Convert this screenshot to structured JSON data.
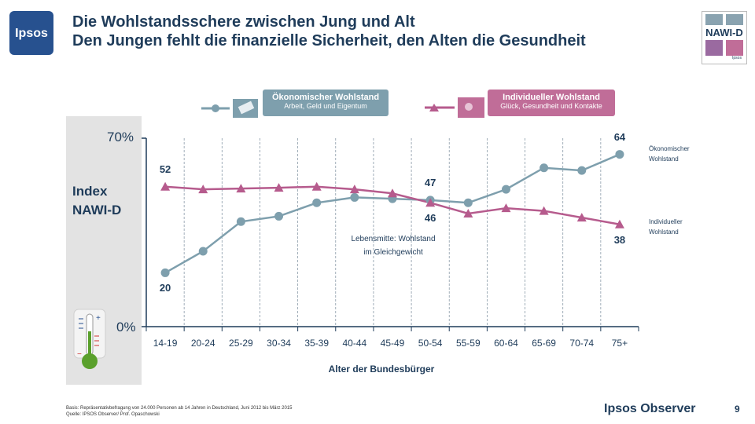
{
  "header": {
    "logo_text": "Ipsos",
    "title_line1": "Die Wohlstandsschere zwischen Jung und Alt",
    "title_line2": "Den Jungen fehlt die finanzielle Sicherheit, den Alten die Gesundheit",
    "badge_text": "NAWI-D",
    "badge_sub": "Ipsos"
  },
  "legend": [
    {
      "title": "Ökonomischer Wohlstand",
      "subtitle": "Arbeit, Geld und Eigentum"
    },
    {
      "title": "Individueller Wohlstand",
      "subtitle": "Glück, Gesundheit und Kontakte"
    }
  ],
  "side_labels": {
    "index_line1": "Index",
    "index_line2": "NAWI-D",
    "series1_line1": "Ökonomischer",
    "series1_line2": "Wohlstand",
    "series2_line1": "Individueller",
    "series2_line2": "Wohlstand"
  },
  "annotation": {
    "line1": "Lebensmitte: Wohlstand",
    "line2": "im Gleichgewicht"
  },
  "chart_data": {
    "type": "line",
    "title": "Die Wohlstandsschere zwischen Jung und Alt",
    "xlabel": "Alter der Bundesbürger",
    "ylabel": "Index NAWI-D",
    "y_tick_labels": [
      "0%",
      "70%"
    ],
    "ylim": [
      0,
      70
    ],
    "categories": [
      "14-19",
      "20-24",
      "25-29",
      "30-34",
      "35-39",
      "40-44",
      "45-49",
      "50-54",
      "55-59",
      "60-64",
      "65-69",
      "70-74",
      "75+"
    ],
    "series": [
      {
        "name": "Ökonomischer Wohlstand",
        "marker": "circle",
        "color": "#7e9fad",
        "values": [
          20,
          28,
          39,
          41,
          46,
          48,
          47.5,
          47,
          46,
          51,
          59,
          58,
          64
        ]
      },
      {
        "name": "Individueller Wohlstand",
        "marker": "triangle",
        "color": "#b65b8d",
        "values": [
          52,
          51,
          51.3,
          51.6,
          52,
          51,
          49.5,
          46,
          42,
          44,
          43,
          40.5,
          38
        ]
      }
    ],
    "data_labels": [
      {
        "series": 0,
        "index": 0,
        "text": "20"
      },
      {
        "series": 1,
        "index": 0,
        "text": "52"
      },
      {
        "series": 0,
        "index": 7,
        "text": "47"
      },
      {
        "series": 1,
        "index": 7,
        "text": "46"
      },
      {
        "series": 0,
        "index": 12,
        "text": "64"
      },
      {
        "series": 1,
        "index": 12,
        "text": "38"
      }
    ]
  },
  "footer": {
    "basis": "Basis:    Repräsentativbefragung von 24.000 Personen ab 14 Jahren in Deutschland, Juni 2012 bis März 2015",
    "source": "Quelle:   IPSOS Observer/ Prof. Opaschowski",
    "brand": "Ipsos Observer",
    "page": "9"
  }
}
